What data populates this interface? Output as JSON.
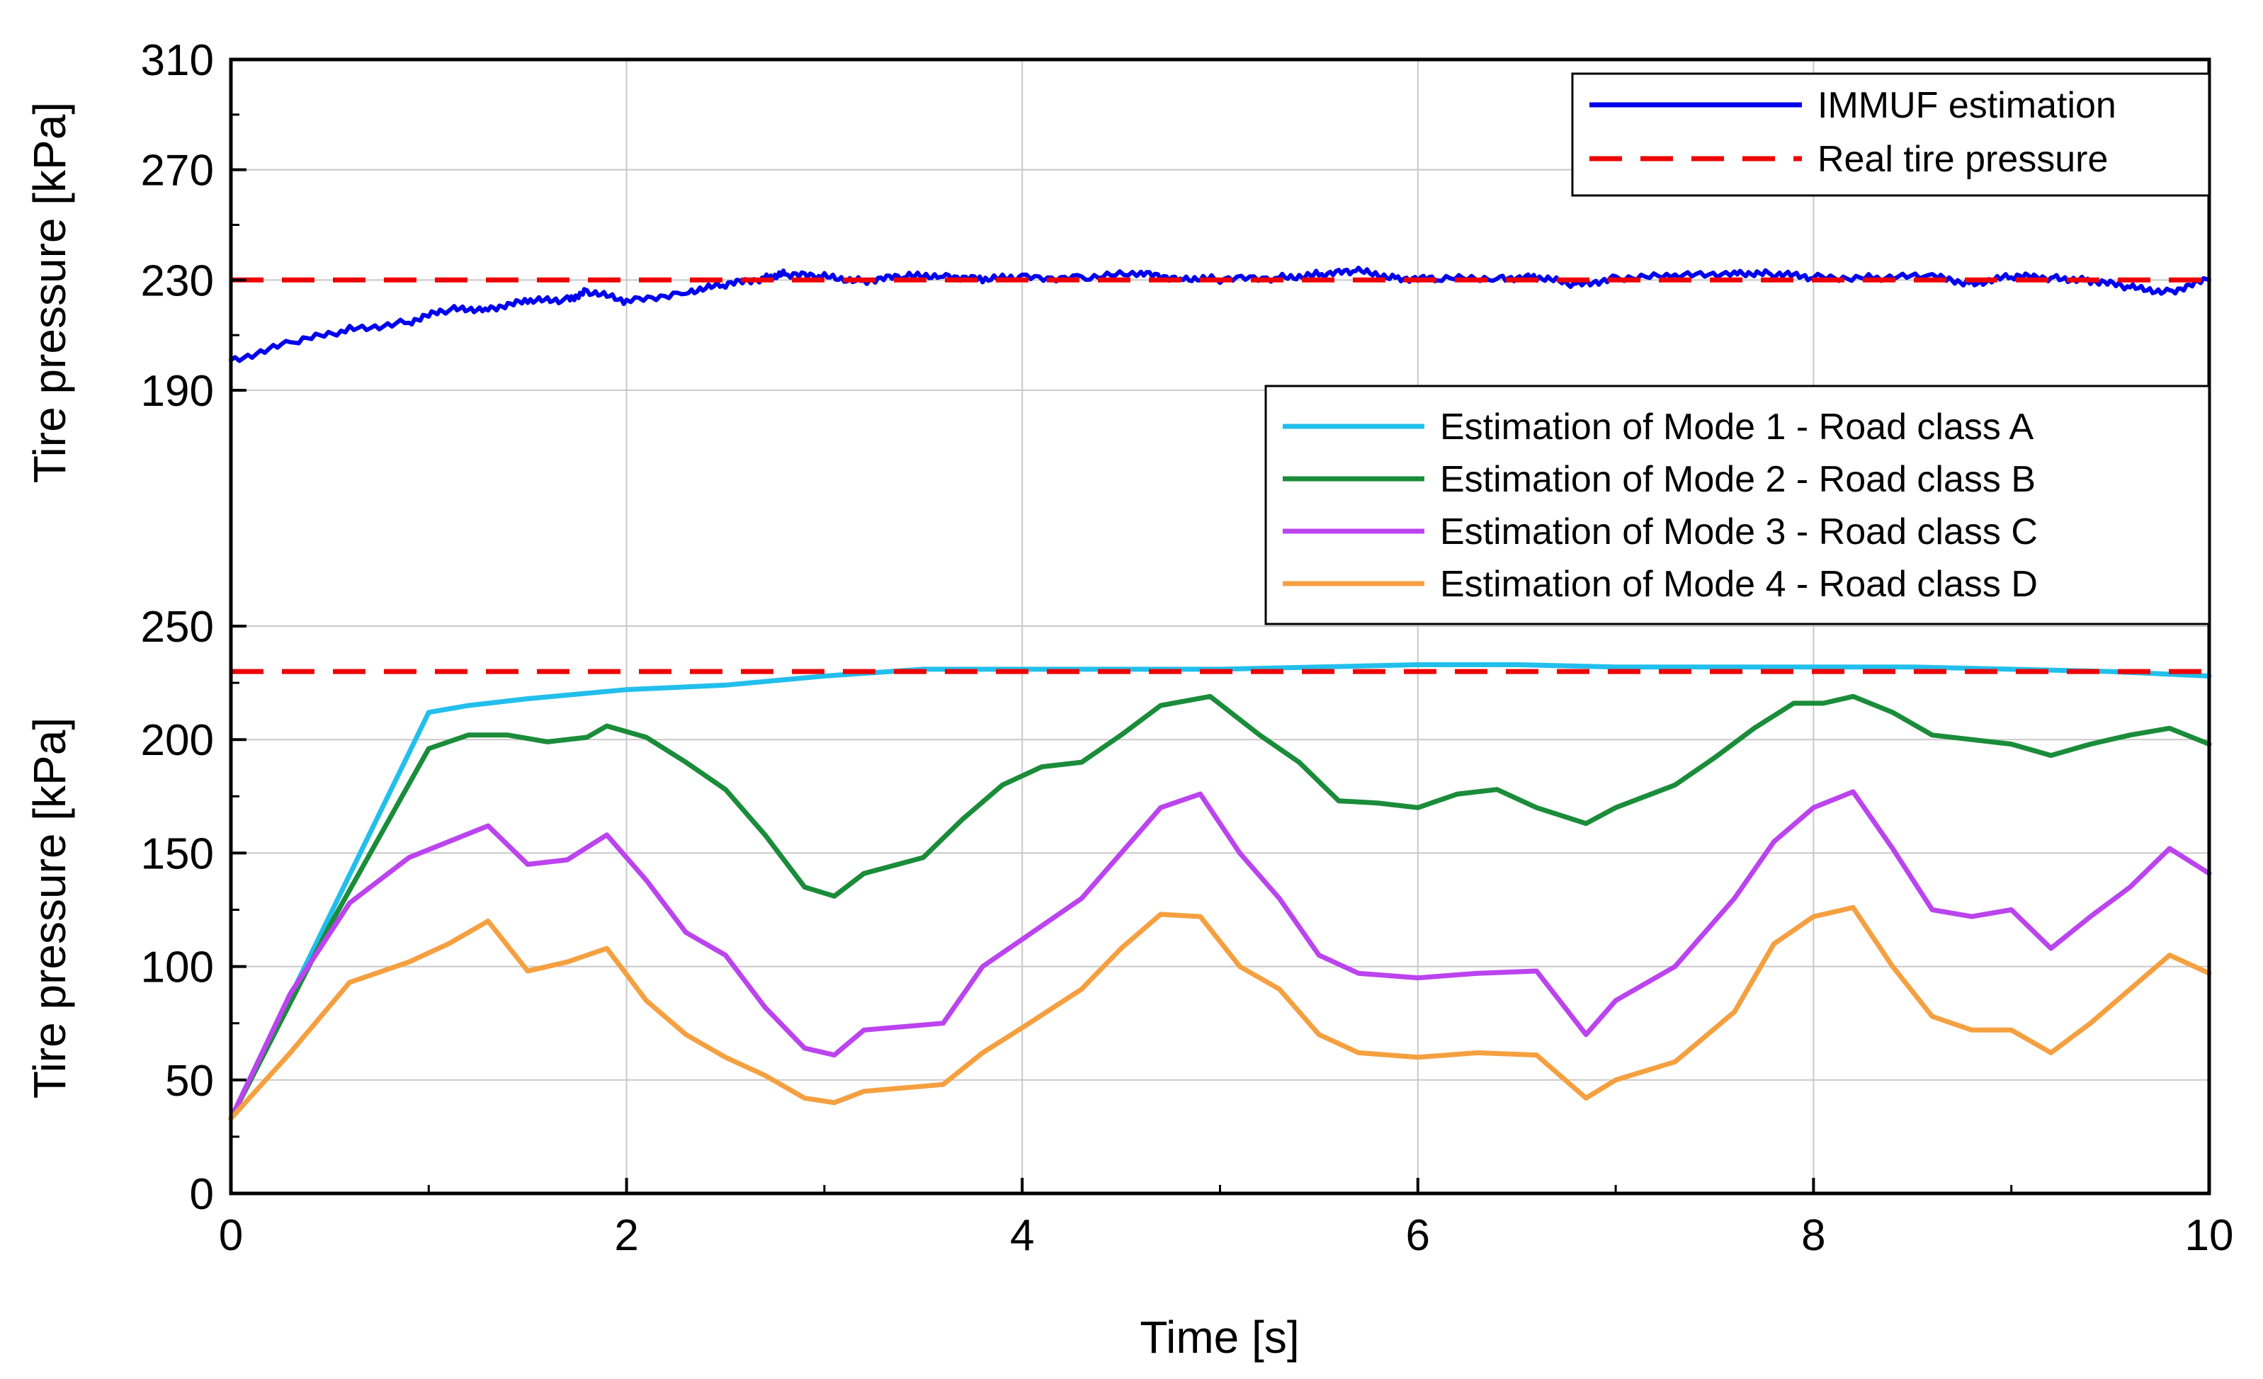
{
  "chart_data": {
    "type": "line",
    "xlabel": "Time [s]",
    "xlim": [
      0,
      10
    ],
    "xticks": [
      "0",
      "2",
      "4",
      "6",
      "8",
      "10"
    ],
    "panels": [
      {
        "name": "top",
        "ylabel": "Tire pressure [kPa]",
        "ylim": [
          190,
          310
        ],
        "yticks": [
          "190",
          "230",
          "270",
          "310"
        ],
        "legend_location": "top-right",
        "series": [
          {
            "name": "IMMUF estimation",
            "color": "#0000ee",
            "style": "solid",
            "x": [
              0,
              0.3,
              0.6,
              0.9,
              1.1,
              1.3,
              1.5,
              1.7,
              1.8,
              2.0,
              2.3,
              2.5,
              2.7,
              2.8,
              3.0,
              3.2,
              3.4,
              3.6,
              3.8,
              4.0,
              4.3,
              4.6,
              4.8,
              5.0,
              5.3,
              5.5,
              5.7,
              5.9,
              6.1,
              6.4,
              6.6,
              6.8,
              7.0,
              7.3,
              7.6,
              7.8,
              8.0,
              8.3,
              8.6,
              8.8,
              9.0,
              9.2,
              9.4,
              9.6,
              9.8,
              10.0
            ],
            "y": [
              201,
              207,
              212,
              215,
              219,
              220,
              222,
              223,
              226,
              222,
              226,
              228,
              231,
              232,
              231,
              230,
              231,
              232,
              230,
              231,
              231,
              232,
              231,
              230,
              231,
              232,
              233,
              231,
              230,
              231,
              231,
              228,
              231,
              231,
              233,
              232,
              231,
              231,
              231,
              229,
              231,
              231,
              230,
              227,
              226,
              230
            ]
          },
          {
            "name": "Real tire pressure",
            "color": "#ee0000",
            "style": "dashed",
            "x": [
              0,
              10
            ],
            "y": [
              230,
              230
            ]
          }
        ]
      },
      {
        "name": "bottom",
        "ylabel": "Tire pressure [kPa]",
        "ylim": [
          0,
          250
        ],
        "yticks": [
          "0",
          "50",
          "100",
          "150",
          "200",
          "250"
        ],
        "legend_location": "top-right",
        "series": [
          {
            "name": "Estimation of Mode 1 - Road class A",
            "color": "#22bfec",
            "style": "solid",
            "x": [
              0,
              1.0,
              1.2,
              1.5,
              2.0,
              2.5,
              3.0,
              3.5,
              4.0,
              4.5,
              5.0,
              5.5,
              6.0,
              6.5,
              7.0,
              7.5,
              8.0,
              8.5,
              9.0,
              9.5,
              10.0
            ],
            "y": [
              33,
              212,
              215,
              218,
              222,
              224,
              228,
              231,
              231,
              231,
              231,
              232,
              233,
              233,
              232,
              232,
              232,
              232,
              231,
              230,
              228
            ]
          },
          {
            "name": "Estimation of Mode 2 - Road class B",
            "color": "#1a8c3a",
            "style": "solid",
            "x": [
              0,
              0.5,
              1.0,
              1.2,
              1.4,
              1.6,
              1.8,
              1.9,
              2.1,
              2.3,
              2.5,
              2.7,
              2.9,
              3.05,
              3.2,
              3.5,
              3.7,
              3.9,
              4.1,
              4.3,
              4.5,
              4.7,
              4.95,
              5.2,
              5.4,
              5.6,
              5.8,
              6.0,
              6.2,
              6.4,
              6.6,
              6.85,
              7.0,
              7.3,
              7.5,
              7.7,
              7.9,
              8.05,
              8.2,
              8.4,
              8.6,
              8.8,
              9.0,
              9.2,
              9.4,
              9.6,
              9.8,
              10.0
            ],
            "y": [
              33,
              118,
              196,
              202,
              202,
              199,
              201,
              206,
              201,
              190,
              178,
              158,
              135,
              131,
              141,
              148,
              165,
              180,
              188,
              190,
              202,
              215,
              219,
              202,
              190,
              173,
              172,
              170,
              176,
              178,
              170,
              163,
              170,
              180,
              192,
              205,
              216,
              216,
              219,
              212,
              202,
              200,
              198,
              193,
              198,
              202,
              205,
              198
            ]
          },
          {
            "name": "Estimation of Mode 3 - Road class C",
            "color": "#bb44ee",
            "style": "solid",
            "x": [
              0,
              0.3,
              0.6,
              0.9,
              1.1,
              1.3,
              1.5,
              1.7,
              1.9,
              2.1,
              2.3,
              2.5,
              2.7,
              2.9,
              3.05,
              3.2,
              3.6,
              3.8,
              4.0,
              4.3,
              4.5,
              4.7,
              4.9,
              5.1,
              5.3,
              5.5,
              5.7,
              6.0,
              6.3,
              6.6,
              6.85,
              7.0,
              7.3,
              7.6,
              7.8,
              8.0,
              8.2,
              8.4,
              8.6,
              8.8,
              9.0,
              9.2,
              9.4,
              9.6,
              9.8,
              10.0
            ],
            "y": [
              33,
              88,
              128,
              148,
              155,
              162,
              145,
              147,
              158,
              138,
              115,
              105,
              82,
              64,
              61,
              72,
              75,
              100,
              112,
              130,
              150,
              170,
              176,
              150,
              130,
              105,
              97,
              95,
              97,
              98,
              70,
              85,
              100,
              130,
              155,
              170,
              177,
              152,
              125,
              122,
              125,
              108,
              122,
              135,
              152,
              141
            ]
          },
          {
            "name": "Estimation of Mode 4 - Road class D",
            "color": "#f5a040",
            "style": "solid",
            "x": [
              0,
              0.3,
              0.6,
              0.9,
              1.1,
              1.3,
              1.5,
              1.7,
              1.9,
              2.1,
              2.3,
              2.5,
              2.7,
              2.9,
              3.05,
              3.2,
              3.6,
              3.8,
              4.0,
              4.3,
              4.5,
              4.7,
              4.9,
              5.1,
              5.3,
              5.5,
              5.7,
              6.0,
              6.3,
              6.6,
              6.85,
              7.0,
              7.3,
              7.6,
              7.8,
              8.0,
              8.2,
              8.4,
              8.6,
              8.8,
              9.0,
              9.2,
              9.4,
              9.6,
              9.8,
              10.0
            ],
            "y": [
              33,
              62,
              93,
              102,
              110,
              120,
              98,
              102,
              108,
              85,
              70,
              60,
              52,
              42,
              40,
              45,
              48,
              62,
              73,
              90,
              108,
              123,
              122,
              100,
              90,
              70,
              62,
              60,
              62,
              61,
              42,
              50,
              58,
              80,
              110,
              122,
              126,
              100,
              78,
              72,
              72,
              62,
              75,
              90,
              105,
              97
            ]
          },
          {
            "name": "Real tire pressure",
            "color": "#ee0000",
            "style": "dashed",
            "legend": false,
            "x": [
              0,
              10
            ],
            "y": [
              230,
              230
            ]
          }
        ]
      }
    ]
  }
}
